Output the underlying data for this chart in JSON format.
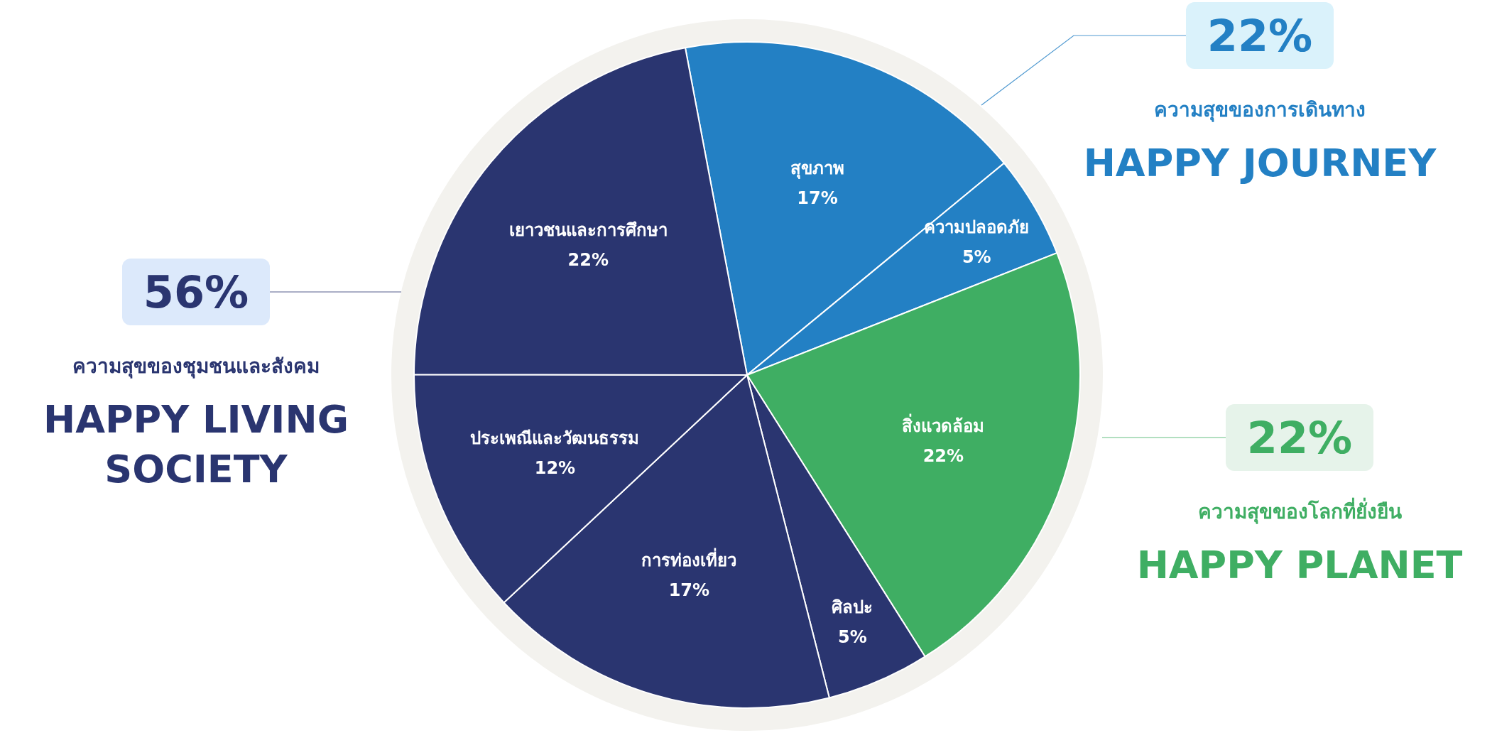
{
  "chart_data": {
    "type": "pie",
    "categories": [
      "สุขภาพ",
      "ความปลอดภัย",
      "สิ่งแวดล้อม",
      "ศิลปะ",
      "การท่องเที่ยว",
      "ประเพณีและวัฒนธรรม",
      "เยาวชนและการศึกษา"
    ],
    "values": [
      17,
      5,
      22,
      5,
      17,
      12,
      22
    ],
    "value_labels": [
      "17%",
      "5%",
      "22%",
      "5%",
      "17%",
      "12%",
      "22%"
    ],
    "colors": [
      "#2380c4",
      "#2380c4",
      "#3fae63",
      "#2a3570",
      "#2a3570",
      "#2a3570",
      "#2a3570"
    ],
    "annotations": [
      "56%",
      "ความสุขของชุมชนและสังคม",
      "HAPPY LIVING SOCIETY",
      "22%",
      "ความสุขของการเดินทาง",
      "HAPPY JOURNEY",
      "22%",
      "ความสุขของโลกที่ยั่งยืน",
      "HAPPY PLANET"
    ]
  }
}
